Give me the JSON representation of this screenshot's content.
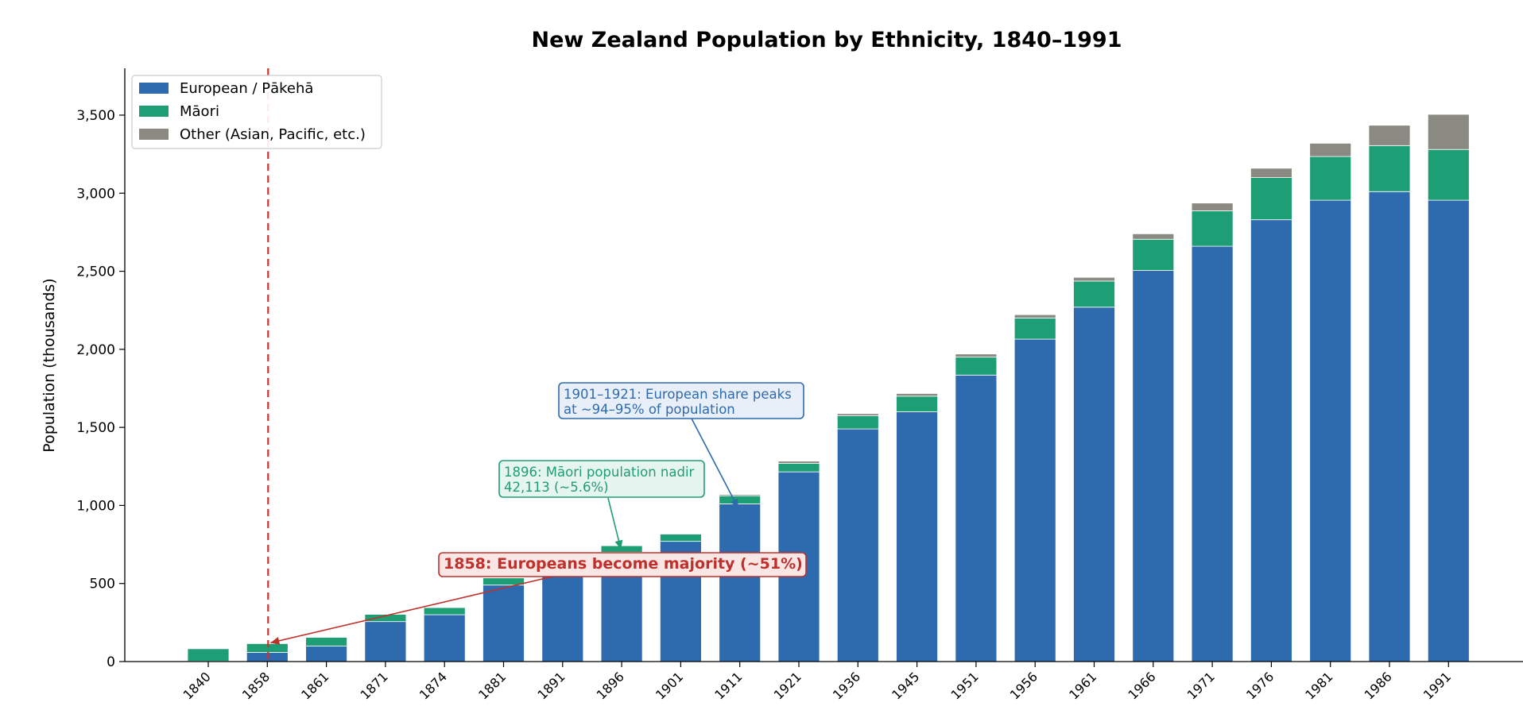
{
  "chart_data": {
    "type": "bar",
    "stacked": true,
    "title": "New Zealand Population by Ethnicity, 1840–1991",
    "xlabel": "",
    "ylabel": "Population (thousands)",
    "ylim": [
      0,
      3800
    ],
    "yticks": [
      0,
      500,
      1000,
      1500,
      2000,
      2500,
      3000,
      3500
    ],
    "ytick_labels": [
      "0",
      "500",
      "1,000",
      "1,500",
      "2,000",
      "2,500",
      "3,000",
      "3,500"
    ],
    "grid": false,
    "legend_position": "top-left",
    "categories": [
      "1840",
      "1858",
      "1861",
      "1871",
      "1874",
      "1881",
      "1891",
      "1896",
      "1901",
      "1911",
      "1921",
      "1936",
      "1945",
      "1951",
      "1956",
      "1961",
      "1966",
      "1971",
      "1976",
      "1981",
      "1986",
      "1991"
    ],
    "series": [
      {
        "name": "European / Pākehā",
        "color": "#2e6aae",
        "values": [
          2,
          59,
          99,
          256,
          300,
          490,
          580,
          700,
          770,
          1010,
          1215,
          1490,
          1600,
          1835,
          2065,
          2270,
          2505,
          2660,
          2830,
          2955,
          3010,
          2955
        ]
      },
      {
        "name": "Māori",
        "color": "#1e9e74",
        "values": [
          80,
          56,
          56,
          47,
          46,
          46,
          44,
          42,
          46,
          52,
          55,
          84,
          100,
          115,
          135,
          167,
          200,
          227,
          270,
          280,
          295,
          325
        ]
      },
      {
        "name": "Other (Asian, Pacific, etc.)",
        "color": "#8a8a82",
        "values": [
          0,
          0,
          0,
          2,
          2,
          2,
          3,
          4,
          5,
          8,
          14,
          14,
          17,
          20,
          22,
          24,
          35,
          50,
          60,
          85,
          130,
          225
        ]
      }
    ],
    "reference_line": {
      "category": "1858",
      "color": "#d0312d",
      "style": "dashed"
    },
    "annotations": [
      {
        "id": "majority",
        "text": "1858: Europeans become majority (~51%)",
        "color": "#c0302b",
        "bg": "#f9e6e5",
        "target_category": "1858",
        "target_value": 110
      },
      {
        "id": "nadir",
        "lines": [
          "1896: Māori population nadir",
          "42,113 (~5.6%)"
        ],
        "color": "#1e9e74",
        "bg": "#e6f5ef",
        "target_category": "1896",
        "target_value": 750
      },
      {
        "id": "peak",
        "lines": [
          "1901–1921: European share peaks",
          "at ~94–95% of population"
        ],
        "color": "#2e6aae",
        "bg": "#e8eff8",
        "target_category": "1911",
        "target_value": 1085
      }
    ]
  }
}
